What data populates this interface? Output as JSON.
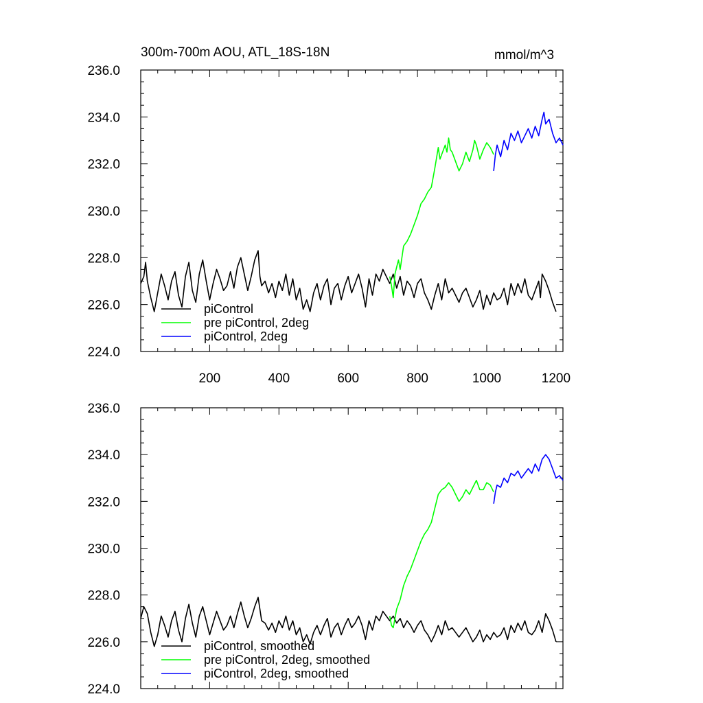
{
  "header": {
    "title": "300m-700m AOU, ATL_18S-18N",
    "units": "mmol/m^3"
  },
  "colors": {
    "piControl": "#000000",
    "pre_piControl_2deg": "#00ff00",
    "piControl_2deg": "#0000ff"
  },
  "chart_data": [
    {
      "type": "line",
      "title": "300m-700m AOU, ATL_18S-18N",
      "units_label": "mmol/m^3",
      "xlim": [
        1,
        1220
      ],
      "ylim": [
        224.0,
        236.0
      ],
      "x_ticks": [
        200,
        400,
        600,
        800,
        1000,
        1200
      ],
      "x_tick_labels": [
        "200",
        "400",
        "600",
        "800",
        "1000",
        "1200"
      ],
      "y_ticks": [
        224.0,
        226.0,
        228.0,
        230.0,
        232.0,
        234.0,
        236.0
      ],
      "y_tick_labels": [
        "224.0",
        "226.0",
        "228.0",
        "230.0",
        "232.0",
        "234.0",
        "236.0"
      ],
      "legend_position": "bottom-left",
      "series": [
        {
          "name": "piControl",
          "color": "#000000",
          "x": [
            1,
            10,
            15,
            20,
            30,
            40,
            50,
            60,
            70,
            80,
            90,
            100,
            110,
            120,
            130,
            140,
            150,
            160,
            170,
            180,
            190,
            200,
            210,
            220,
            230,
            240,
            250,
            260,
            270,
            280,
            290,
            300,
            310,
            320,
            330,
            340,
            345,
            350,
            360,
            370,
            380,
            390,
            400,
            410,
            420,
            430,
            440,
            450,
            460,
            470,
            480,
            490,
            500,
            510,
            520,
            530,
            540,
            550,
            560,
            570,
            580,
            590,
            600,
            610,
            620,
            630,
            640,
            650,
            660,
            670,
            680,
            690,
            700,
            710,
            720,
            730,
            740,
            750,
            760,
            770,
            780,
            790,
            800,
            810,
            820,
            830,
            840,
            850,
            860,
            870,
            880,
            890,
            900,
            910,
            920,
            930,
            940,
            950,
            960,
            970,
            980,
            990,
            1000,
            1010,
            1020,
            1030,
            1040,
            1050,
            1060,
            1070,
            1080,
            1090,
            1100,
            1110,
            1120,
            1130,
            1140,
            1150,
            1155,
            1160,
            1170,
            1180,
            1190,
            1200
          ],
          "y": [
            226.9,
            227.2,
            227.8,
            227.0,
            226.3,
            225.7,
            226.5,
            227.3,
            226.8,
            226.2,
            227.0,
            227.4,
            226.4,
            225.9,
            227.2,
            227.8,
            226.6,
            226.1,
            227.3,
            227.9,
            227.0,
            226.2,
            226.9,
            227.5,
            227.1,
            226.6,
            226.8,
            227.4,
            226.7,
            227.6,
            228.0,
            227.3,
            226.6,
            227.2,
            227.9,
            228.3,
            227.2,
            226.8,
            227.0,
            226.5,
            226.9,
            226.3,
            227.0,
            226.6,
            227.3,
            226.4,
            227.1,
            226.2,
            226.7,
            225.8,
            226.2,
            225.7,
            226.5,
            226.9,
            226.2,
            226.8,
            227.1,
            226.0,
            226.7,
            226.9,
            226.2,
            226.8,
            227.2,
            226.5,
            226.9,
            227.3,
            226.7,
            225.9,
            227.1,
            226.4,
            227.3,
            227.0,
            227.5,
            227.2,
            226.9,
            227.3,
            226.7,
            227.2,
            226.4,
            227.0,
            226.8,
            226.3,
            226.9,
            227.1,
            226.5,
            226.2,
            225.8,
            226.4,
            226.9,
            226.2,
            227.1,
            226.5,
            226.7,
            226.4,
            226.1,
            226.5,
            226.7,
            226.3,
            225.9,
            226.2,
            226.6,
            225.8,
            226.4,
            226.0,
            226.5,
            226.2,
            226.3,
            226.7,
            226.0,
            226.9,
            226.4,
            226.9,
            226.5,
            227.1,
            226.4,
            226.2,
            226.6,
            227.0,
            226.3,
            227.3,
            227.0,
            226.6,
            226.1,
            225.7
          ]
        },
        {
          "name": "pre piControl, 2deg",
          "color": "#00ff00",
          "x": [
            720,
            725,
            730,
            735,
            740,
            745,
            750,
            760,
            770,
            780,
            790,
            800,
            810,
            820,
            830,
            840,
            850,
            860,
            865,
            870,
            880,
            885,
            890,
            895,
            900,
            910,
            920,
            930,
            940,
            950,
            960,
            965,
            970,
            980,
            990,
            1000,
            1010,
            1020
          ],
          "y": [
            227.2,
            226.8,
            226.3,
            227.3,
            227.6,
            227.9,
            227.5,
            228.5,
            228.7,
            229.0,
            229.4,
            229.8,
            230.3,
            230.5,
            230.8,
            231.0,
            231.8,
            232.7,
            232.2,
            232.4,
            232.8,
            232.5,
            233.1,
            232.6,
            232.5,
            232.1,
            231.7,
            232.0,
            232.5,
            232.1,
            232.6,
            233.0,
            232.8,
            232.2,
            232.6,
            232.9,
            232.7,
            232.4
          ]
        },
        {
          "name": "piControl, 2deg",
          "color": "#0000ff",
          "x": [
            1020,
            1025,
            1030,
            1040,
            1050,
            1060,
            1070,
            1080,
            1090,
            1100,
            1110,
            1120,
            1130,
            1140,
            1150,
            1160,
            1165,
            1170,
            1180,
            1190,
            1200,
            1210,
            1220
          ],
          "y": [
            231.7,
            232.4,
            232.8,
            232.3,
            233.0,
            232.6,
            233.3,
            233.0,
            233.4,
            232.9,
            233.2,
            233.5,
            233.1,
            233.6,
            233.2,
            233.9,
            234.2,
            233.7,
            233.9,
            233.3,
            232.9,
            233.1,
            232.8
          ]
        }
      ]
    },
    {
      "type": "line",
      "xlim": [
        1,
        1220
      ],
      "ylim": [
        224.0,
        236.0
      ],
      "y_ticks": [
        224.0,
        226.0,
        228.0,
        230.0,
        232.0,
        234.0,
        236.0
      ],
      "y_tick_labels": [
        "224.0",
        "226.0",
        "228.0",
        "230.0",
        "232.0",
        "234.0",
        "236.0"
      ],
      "x_ticks": [
        200,
        400,
        600,
        800,
        1000,
        1200
      ],
      "legend_position": "bottom-left",
      "series": [
        {
          "name": "piControl, smoothed",
          "color": "#000000",
          "x": [
            1,
            10,
            20,
            30,
            40,
            50,
            60,
            70,
            80,
            90,
            100,
            110,
            120,
            130,
            140,
            150,
            160,
            170,
            180,
            190,
            200,
            210,
            220,
            230,
            240,
            250,
            260,
            270,
            280,
            290,
            300,
            310,
            320,
            330,
            340,
            350,
            360,
            370,
            380,
            390,
            400,
            410,
            420,
            430,
            440,
            450,
            460,
            470,
            480,
            490,
            500,
            510,
            520,
            530,
            540,
            550,
            560,
            570,
            580,
            590,
            600,
            610,
            620,
            630,
            640,
            650,
            660,
            670,
            680,
            690,
            700,
            710,
            720,
            730,
            740,
            750,
            760,
            770,
            780,
            790,
            800,
            810,
            820,
            830,
            840,
            850,
            860,
            870,
            880,
            890,
            900,
            910,
            920,
            930,
            940,
            950,
            960,
            970,
            980,
            990,
            1000,
            1010,
            1020,
            1030,
            1040,
            1050,
            1060,
            1070,
            1080,
            1090,
            1100,
            1110,
            1120,
            1130,
            1140,
            1150,
            1160,
            1170,
            1180,
            1190,
            1200
          ],
          "y": [
            227.0,
            227.5,
            227.2,
            226.4,
            225.8,
            226.3,
            227.1,
            226.7,
            226.2,
            226.9,
            227.3,
            226.5,
            226.0,
            227.0,
            227.6,
            226.8,
            226.2,
            227.1,
            227.5,
            226.9,
            226.3,
            226.8,
            227.3,
            226.9,
            226.5,
            226.7,
            227.1,
            226.6,
            227.2,
            227.7,
            227.1,
            226.6,
            227.0,
            227.5,
            227.9,
            226.9,
            226.8,
            226.5,
            226.8,
            226.4,
            226.9,
            226.6,
            227.1,
            226.5,
            226.9,
            226.3,
            226.6,
            226.0,
            226.3,
            225.9,
            226.4,
            226.7,
            226.3,
            226.7,
            227.0,
            226.2,
            226.6,
            226.8,
            226.3,
            226.7,
            227.0,
            226.6,
            226.8,
            227.1,
            226.7,
            226.1,
            226.9,
            226.5,
            227.1,
            226.9,
            227.3,
            227.1,
            226.9,
            227.1,
            226.8,
            227.0,
            226.6,
            226.9,
            226.7,
            226.4,
            226.7,
            226.9,
            226.5,
            226.3,
            226.0,
            226.3,
            226.7,
            226.3,
            226.9,
            226.5,
            226.6,
            226.4,
            226.2,
            226.4,
            226.6,
            226.3,
            226.0,
            226.2,
            226.5,
            226.0,
            226.3,
            226.1,
            226.4,
            226.2,
            226.3,
            226.6,
            226.1,
            226.7,
            226.4,
            226.8,
            226.5,
            226.9,
            226.4,
            226.3,
            226.5,
            226.9,
            226.4,
            227.2,
            226.9,
            226.5,
            226.0
          ]
        },
        {
          "name": "pre piControl, 2deg, smoothed",
          "color": "#00ff00",
          "x": [
            720,
            725,
            730,
            740,
            750,
            760,
            770,
            780,
            790,
            800,
            810,
            820,
            830,
            840,
            850,
            860,
            870,
            880,
            890,
            900,
            910,
            920,
            930,
            940,
            950,
            960,
            970,
            980,
            990,
            1000,
            1010,
            1020
          ],
          "y": [
            227.1,
            226.7,
            226.6,
            227.4,
            227.8,
            228.4,
            228.8,
            229.1,
            229.5,
            229.9,
            230.3,
            230.6,
            230.8,
            231.1,
            231.7,
            232.3,
            232.5,
            232.6,
            232.8,
            232.6,
            232.3,
            232.0,
            232.2,
            232.5,
            232.3,
            232.6,
            232.9,
            232.5,
            232.5,
            232.8,
            232.7,
            232.4
          ]
        },
        {
          "name": "piControl, 2deg, smoothed",
          "color": "#0000ff",
          "x": [
            1020,
            1025,
            1030,
            1040,
            1050,
            1060,
            1070,
            1080,
            1090,
            1100,
            1110,
            1120,
            1130,
            1140,
            1150,
            1160,
            1170,
            1180,
            1190,
            1200,
            1210,
            1220
          ],
          "y": [
            231.9,
            232.4,
            232.7,
            232.6,
            233.0,
            232.8,
            233.2,
            233.1,
            233.3,
            233.0,
            233.2,
            233.4,
            233.2,
            233.6,
            233.3,
            233.8,
            234.0,
            233.8,
            233.4,
            233.0,
            233.1,
            232.9
          ]
        }
      ]
    }
  ]
}
